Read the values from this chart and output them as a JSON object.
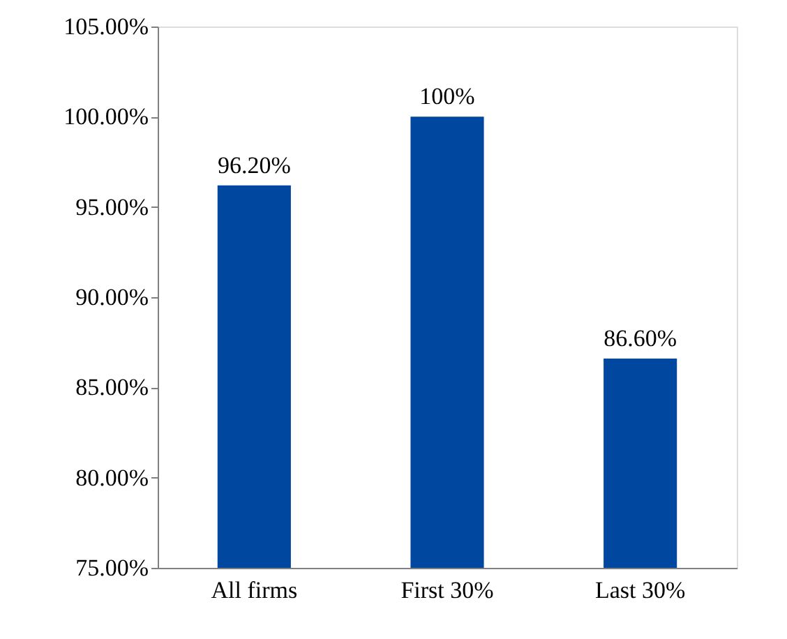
{
  "chart_data": {
    "type": "bar",
    "categories": [
      "All firms",
      "First 30%",
      "Last 30%"
    ],
    "values": [
      96.2,
      100,
      86.6
    ],
    "value_labels": [
      "96.20%",
      "100%",
      "86.60%"
    ],
    "color": "#0047a0",
    "ylim": [
      75,
      105
    ],
    "yticks": [
      {
        "value": 75,
        "label": "75.00%"
      },
      {
        "value": 80,
        "label": "80.00%"
      },
      {
        "value": 85,
        "label": "85.00%"
      },
      {
        "value": 90,
        "label": "90.00%"
      },
      {
        "value": 95,
        "label": "95.00%"
      },
      {
        "value": 100,
        "label": "100.00%"
      },
      {
        "value": 105,
        "label": "105.00%"
      }
    ],
    "grid": false
  }
}
